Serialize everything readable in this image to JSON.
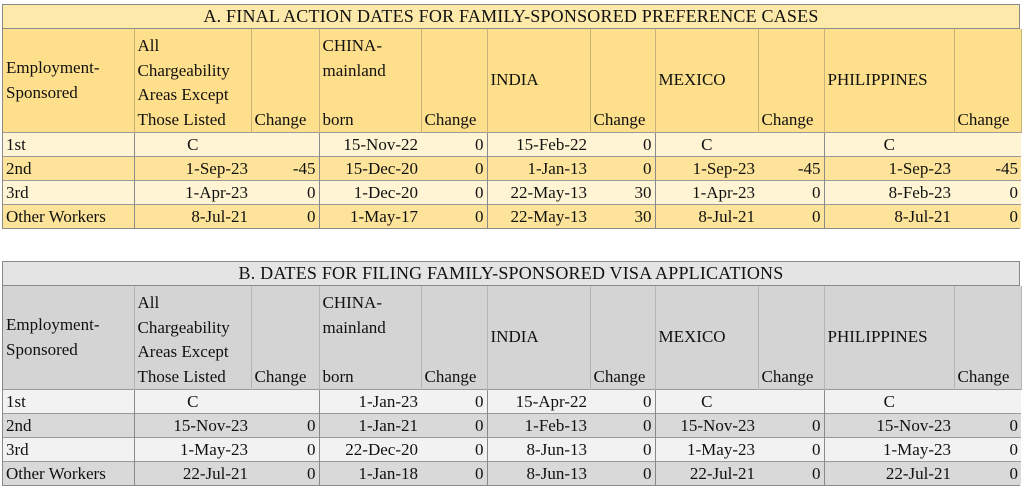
{
  "tableA": {
    "title": "A. FINAL ACTION DATES FOR FAMILY-SPONSORED PREFERENCE CASES",
    "headers": {
      "category_line1": "Employment-",
      "category_line2": "Sponsored",
      "all_line1": "All",
      "all_line2": "Chargeability",
      "all_line3": "Areas Except",
      "all_line4": "Those Listed",
      "change": "Change",
      "china_line1": "CHINA-",
      "china_line2": "mainland",
      "china_line3": "born",
      "india": "INDIA",
      "mexico": "MEXICO",
      "philippines": "PHILIPPINES"
    },
    "rows": [
      {
        "category": "1st",
        "all": "C",
        "all_change": "",
        "china": "15-Nov-22",
        "china_change": "0",
        "india": "15-Feb-22",
        "india_change": "0",
        "mexico": "C",
        "mexico_change": "",
        "philippines": "C",
        "philippines_change": ""
      },
      {
        "category": "2nd",
        "all": "1-Sep-23",
        "all_change": "-45",
        "china": "15-Dec-20",
        "china_change": "0",
        "india": "1-Jan-13",
        "india_change": "0",
        "mexico": "1-Sep-23",
        "mexico_change": "-45",
        "philippines": "1-Sep-23",
        "philippines_change": "-45"
      },
      {
        "category": "3rd",
        "all": "1-Apr-23",
        "all_change": "0",
        "china": "1-Dec-20",
        "china_change": "0",
        "india": "22-May-13",
        "india_change": "30",
        "mexico": "1-Apr-23",
        "mexico_change": "0",
        "philippines": "8-Feb-23",
        "philippines_change": "0"
      },
      {
        "category": "Other Workers",
        "all": "8-Jul-21",
        "all_change": "0",
        "china": "1-May-17",
        "china_change": "0",
        "india": "22-May-13",
        "india_change": "30",
        "mexico": "8-Jul-21",
        "mexico_change": "0",
        "philippines": "8-Jul-21",
        "philippines_change": "0"
      }
    ]
  },
  "tableB": {
    "title": "B. DATES FOR FILING FAMILY-SPONSORED VISA APPLICATIONS",
    "headers": {
      "category_line1": "Employment-",
      "category_line2": "Sponsored",
      "all_line1": "All",
      "all_line2": "Chargeability",
      "all_line3": "Areas Except",
      "all_line4": "Those Listed",
      "change": "Change",
      "china_line1": "CHINA-",
      "china_line2": "mainland",
      "china_line3": "born",
      "india": "INDIA",
      "mexico": "MEXICO",
      "philippines": "PHILIPPINES"
    },
    "rows": [
      {
        "category": "1st",
        "all": "C",
        "all_change": "",
        "china": "1-Jan-23",
        "china_change": "0",
        "india": "15-Apr-22",
        "india_change": "0",
        "mexico": "C",
        "mexico_change": "",
        "philippines": "C",
        "philippines_change": ""
      },
      {
        "category": "2nd",
        "all": "15-Nov-23",
        "all_change": "0",
        "china": "1-Jan-21",
        "china_change": "0",
        "india": "1-Feb-13",
        "india_change": "0",
        "mexico": "15-Nov-23",
        "mexico_change": "0",
        "philippines": "15-Nov-23",
        "philippines_change": "0"
      },
      {
        "category": "3rd",
        "all": "1-May-23",
        "all_change": "0",
        "china": "22-Dec-20",
        "china_change": "0",
        "india": "8-Jun-13",
        "india_change": "0",
        "mexico": "1-May-23",
        "mexico_change": "0",
        "philippines": "1-May-23",
        "philippines_change": "0"
      },
      {
        "category": "Other Workers",
        "all": "22-Jul-21",
        "all_change": "0",
        "china": "1-Jan-18",
        "china_change": "0",
        "india": "8-Jun-13",
        "india_change": "0",
        "mexico": "22-Jul-21",
        "mexico_change": "0",
        "philippines": "22-Jul-21",
        "philippines_change": "0"
      }
    ]
  }
}
